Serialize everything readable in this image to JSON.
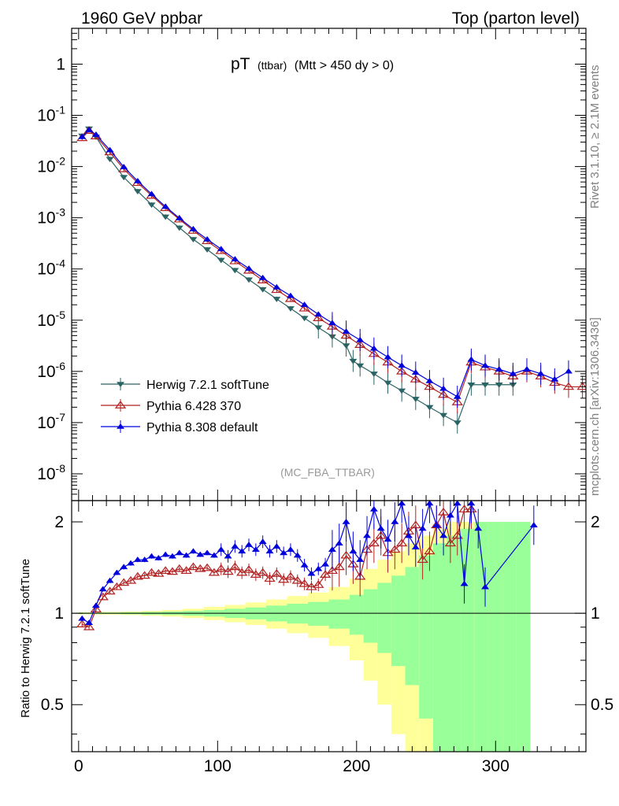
{
  "header": {
    "left": "1960 GeV ppbar",
    "right": "Top (parton level)"
  },
  "plot_title": {
    "main": "pT",
    "sub1": "(ttbar)",
    "sub2": "(Mtt > 450 dy > 0)"
  },
  "analysis_tag": "(MC_FBA_TTBAR)",
  "side_text": {
    "rivet": "Rivet 3.1.10, ≥ 2.1M events",
    "mcplots": "mcplots.cern.ch [arXiv:1306.3436]"
  },
  "ratio_ylabel": "Ratio to Herwig 7.2.1 softTune",
  "colors": {
    "herwig": "#2b6464",
    "pythia6": "#b22222",
    "pythia8": "#0000dd",
    "band_inner": "#99ff99",
    "band_outer": "#ffff99"
  },
  "chart_data": [
    {
      "type": "scatter",
      "panel": "main",
      "yscale": "log",
      "xlim": [
        -5,
        365
      ],
      "ylim": [
        3e-09,
        5
      ],
      "yticklabels": [
        "1",
        "10^-1",
        "10^-2",
        "10^-3",
        "10^-4",
        "10^-5",
        "10^-6",
        "10^-7",
        "10^-8"
      ],
      "legend_position": "lower-left",
      "series": [
        {
          "name": "Herwig 7.2.1 softTune",
          "marker": "triangle-down",
          "x": [
            2.5,
            7.5,
            12.5,
            22.5,
            32.5,
            42.5,
            52.5,
            62.5,
            72.5,
            82.5,
            92.5,
            102.5,
            112.5,
            122.5,
            132.5,
            142.5,
            152.5,
            162.5,
            172.5,
            182.5,
            192.5,
            197.5,
            202.5,
            212.5,
            222.5,
            232.5,
            242.5,
            252.5,
            262.5,
            272.5,
            282.5,
            292.5,
            302.5,
            312.5
          ],
          "y": [
            0.04,
            0.055,
            0.038,
            0.014,
            0.0062,
            0.0033,
            0.0018,
            0.00105,
            0.00064,
            0.00038,
            0.00024,
            0.00015,
            9.5e-05,
            6.2e-05,
            4e-05,
            2.6e-05,
            1.7e-05,
            1.1e-05,
            7.2e-06,
            4.8e-06,
            3.2e-06,
            1.6e-06,
            1.3e-06,
            9e-07,
            6e-07,
            4.2e-07,
            2.9e-07,
            2e-07,
            1.4e-07,
            1e-07,
            5.5e-07,
            5.5e-07,
            5.5e-07,
            5.5e-07
          ]
        },
        {
          "name": "Pythia 6.428 370",
          "marker": "triangle-up-open",
          "x": [
            2.5,
            7.5,
            12.5,
            22.5,
            32.5,
            42.5,
            52.5,
            62.5,
            72.5,
            82.5,
            92.5,
            102.5,
            112.5,
            122.5,
            132.5,
            142.5,
            152.5,
            162.5,
            172.5,
            182.5,
            192.5,
            202.5,
            212.5,
            222.5,
            232.5,
            242.5,
            252.5,
            262.5,
            272.5,
            282.5,
            292.5,
            302.5,
            312.5,
            322.5,
            332.5,
            342.5,
            352.5,
            362.5
          ],
          "y": [
            0.036,
            0.05,
            0.039,
            0.019,
            0.0089,
            0.0048,
            0.0027,
            0.00155,
            0.00093,
            0.00056,
            0.00035,
            0.000225,
            0.000142,
            9.3e-05,
            6e-05,
            3.9e-05,
            2.6e-05,
            1.7e-05,
            1.1e-05,
            7.5e-06,
            5e-06,
            3.3e-06,
            2.2e-06,
            1.5e-06,
            1e-06,
            7e-07,
            5e-07,
            3.5e-07,
            2.5e-07,
            1.5e-06,
            1.2e-06,
            1e-06,
            8e-07,
            1e-06,
            8e-07,
            6e-07,
            5e-07,
            5e-07
          ]
        },
        {
          "name": "Pythia 8.308 default",
          "marker": "triangle-up",
          "x": [
            2.5,
            7.5,
            12.5,
            22.5,
            32.5,
            42.5,
            52.5,
            62.5,
            72.5,
            82.5,
            92.5,
            102.5,
            112.5,
            122.5,
            132.5,
            142.5,
            152.5,
            162.5,
            172.5,
            182.5,
            192.5,
            202.5,
            212.5,
            222.5,
            232.5,
            242.5,
            252.5,
            262.5,
            272.5,
            282.5,
            292.5,
            302.5,
            312.5,
            322.5,
            332.5,
            342.5,
            352.5
          ],
          "y": [
            0.038,
            0.052,
            0.042,
            0.021,
            0.0098,
            0.0052,
            0.0029,
            0.00165,
            0.00098,
            0.0006,
            0.00038,
            0.000245,
            0.000155,
            0.000102,
            6.7e-05,
            4.4e-05,
            3e-05,
            2e-05,
            1.3e-05,
            8.8e-06,
            6e-06,
            4.1e-06,
            2.8e-06,
            1.9e-06,
            1.3e-06,
            9.5e-07,
            6.5e-07,
            4.6e-07,
            3.2e-07,
            1.7e-06,
            1.3e-06,
            1.1e-06,
            9e-07,
            1.1e-06,
            9e-07,
            7e-07,
            1e-06
          ]
        }
      ]
    },
    {
      "type": "scatter",
      "panel": "ratio",
      "ylabel": "Ratio to Herwig 7.2.1 softTune",
      "yscale": "log",
      "xlim": [
        -5,
        365
      ],
      "ylim": [
        0.35,
        2.35
      ],
      "xticks": [
        0,
        100,
        200,
        300
      ],
      "yticks": [
        0.5,
        1,
        2
      ],
      "reference_line": 1,
      "uncertainty_band": {
        "x_edges": [
          0,
          15,
          30,
          45,
          60,
          75,
          90,
          105,
          120,
          135,
          150,
          165,
          180,
          195,
          205,
          215,
          225,
          235,
          245,
          255,
          265,
          275,
          285,
          295,
          305,
          315,
          325
        ],
        "inner_half_width": [
          0.005,
          0.005,
          0.007,
          0.01,
          0.013,
          0.018,
          0.025,
          0.035,
          0.045,
          0.06,
          0.075,
          0.09,
          0.11,
          0.15,
          0.2,
          0.26,
          0.33,
          0.42,
          0.55,
          0.7,
          0.8,
          0.9,
          1.0,
          1.0,
          1.0,
          1.0
        ],
        "outer_half_width": [
          0.008,
          0.01,
          0.013,
          0.018,
          0.025,
          0.035,
          0.05,
          0.065,
          0.085,
          0.11,
          0.14,
          0.17,
          0.22,
          0.3,
          0.4,
          0.5,
          0.6,
          0.7,
          0.8,
          0.9,
          1.0,
          1.0,
          1.0,
          1.0,
          1.0,
          1.0
        ]
      },
      "series": [
        {
          "name": "Pythia 6.428 370",
          "x": [
            2.5,
            7.5,
            12.5,
            17.5,
            22.5,
            27.5,
            32.5,
            37.5,
            42.5,
            47.5,
            52.5,
            57.5,
            62.5,
            67.5,
            72.5,
            77.5,
            82.5,
            87.5,
            92.5,
            97.5,
            102.5,
            107.5,
            112.5,
            117.5,
            122.5,
            127.5,
            132.5,
            137.5,
            142.5,
            147.5,
            152.5,
            157.5,
            162.5,
            167.5,
            172.5,
            177.5,
            182.5,
            187.5,
            192.5,
            197.5,
            202.5,
            207.5,
            212.5,
            217.5,
            222.5,
            227.5,
            232.5,
            237.5,
            242.5,
            247.5,
            252.5,
            257.5,
            262.5,
            267.5,
            272.5,
            277.5,
            282.5
          ],
          "y": [
            0.92,
            0.9,
            1.03,
            1.13,
            1.18,
            1.22,
            1.26,
            1.28,
            1.32,
            1.33,
            1.36,
            1.35,
            1.38,
            1.37,
            1.4,
            1.38,
            1.42,
            1.4,
            1.41,
            1.36,
            1.4,
            1.37,
            1.42,
            1.36,
            1.39,
            1.34,
            1.36,
            1.3,
            1.35,
            1.29,
            1.32,
            1.28,
            1.25,
            1.22,
            1.24,
            1.34,
            1.38,
            1.42,
            1.55,
            1.45,
            1.32,
            1.62,
            1.7,
            1.8,
            1.58,
            1.62,
            1.7,
            1.86,
            1.95,
            1.5,
            1.6,
            1.95,
            2.15,
            1.7,
            1.8,
            2.2,
            2.2
          ]
        },
        {
          "name": "Pythia 8.308 default",
          "x": [
            2.5,
            7.5,
            12.5,
            17.5,
            22.5,
            27.5,
            32.5,
            37.5,
            42.5,
            47.5,
            52.5,
            57.5,
            62.5,
            67.5,
            72.5,
            77.5,
            82.5,
            87.5,
            92.5,
            97.5,
            102.5,
            107.5,
            112.5,
            117.5,
            122.5,
            127.5,
            132.5,
            137.5,
            142.5,
            147.5,
            152.5,
            157.5,
            162.5,
            167.5,
            172.5,
            177.5,
            182.5,
            187.5,
            192.5,
            197.5,
            202.5,
            207.5,
            212.5,
            217.5,
            222.5,
            227.5,
            232.5,
            237.5,
            242.5,
            247.5,
            252.5,
            257.5,
            262.5,
            267.5,
            272.5,
            277.5,
            282.5,
            287.5,
            292.5,
            327.5
          ],
          "y": [
            0.96,
            0.93,
            1.06,
            1.2,
            1.28,
            1.36,
            1.42,
            1.46,
            1.5,
            1.5,
            1.54,
            1.52,
            1.56,
            1.54,
            1.58,
            1.55,
            1.6,
            1.56,
            1.58,
            1.55,
            1.62,
            1.54,
            1.66,
            1.6,
            1.68,
            1.62,
            1.72,
            1.6,
            1.66,
            1.58,
            1.62,
            1.55,
            1.44,
            1.35,
            1.4,
            1.45,
            1.62,
            1.7,
            2.0,
            1.6,
            1.5,
            1.8,
            2.2,
            1.9,
            1.75,
            2.0,
            2.3,
            1.8,
            1.65,
            1.9,
            2.3,
            1.95,
            1.8,
            2.1,
            2.3,
            1.25,
            2.3,
            1.9,
            1.22,
            1.95
          ]
        }
      ]
    }
  ]
}
